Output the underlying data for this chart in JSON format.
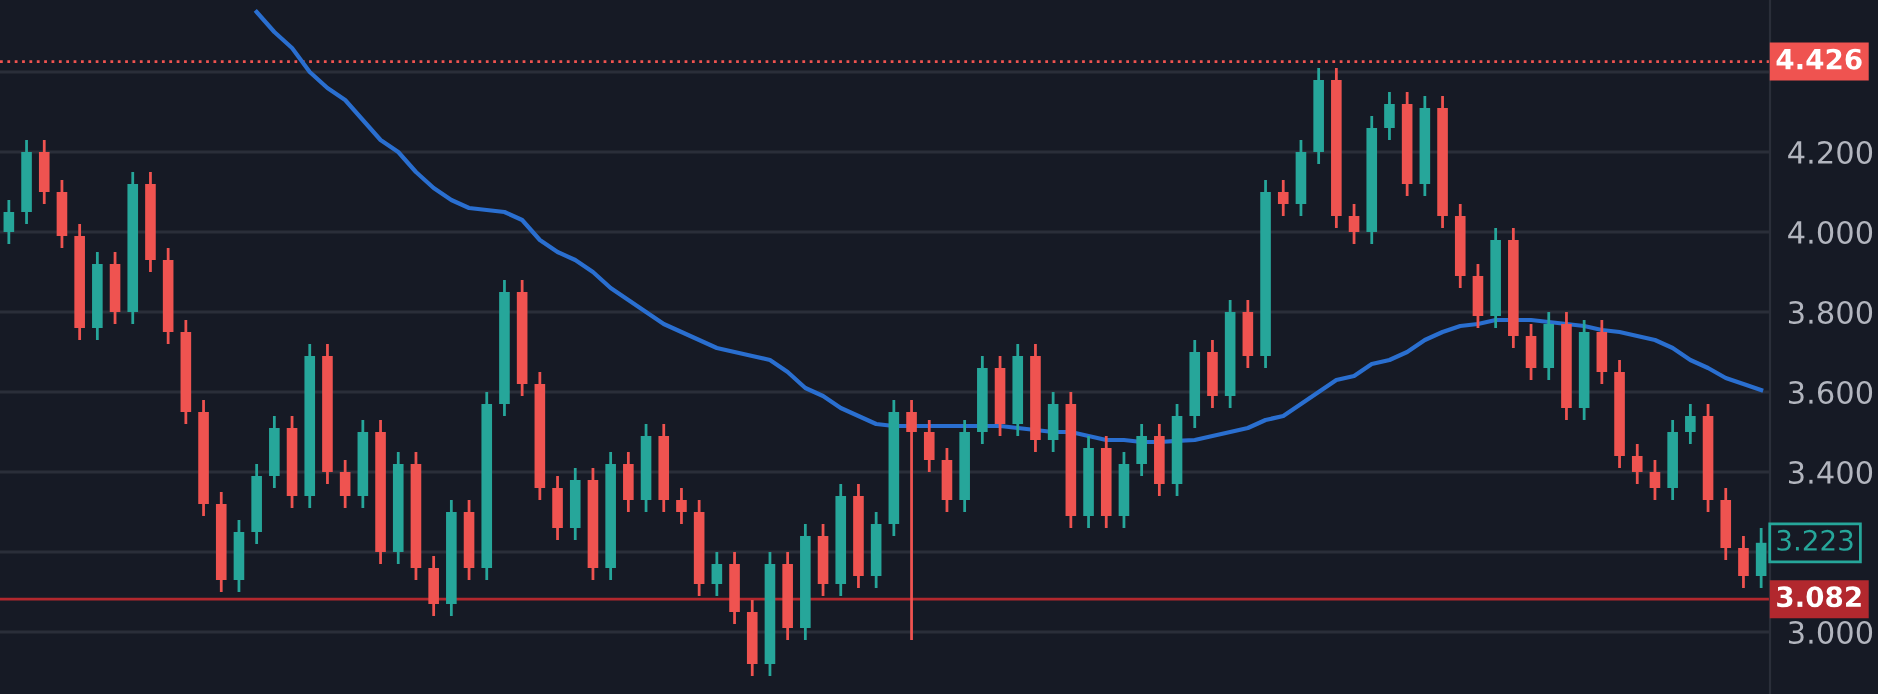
{
  "chart_data": {
    "type": "candlestick",
    "categories": [
      null,
      null,
      null,
      null,
      null,
      null,
      null,
      null,
      null,
      null,
      null,
      null,
      null,
      null,
      null,
      null,
      null,
      null,
      null,
      null,
      null,
      null,
      null,
      null,
      null,
      null,
      null,
      null,
      null,
      null,
      null,
      null,
      null,
      null,
      null,
      null,
      null,
      null,
      null,
      null,
      null,
      null,
      null,
      null,
      null,
      null,
      null,
      null,
      null,
      null,
      null,
      null,
      null,
      null,
      null,
      null,
      null,
      null,
      null,
      null,
      null,
      null,
      null,
      null,
      null,
      null,
      null,
      null,
      null,
      null,
      null,
      null,
      null,
      null,
      null,
      null,
      null,
      null,
      null,
      null,
      null,
      null,
      null,
      null,
      null,
      null,
      null,
      null,
      null,
      null,
      null,
      null,
      null,
      null,
      null,
      null,
      null,
      null,
      null,
      null
    ],
    "ohlc": [
      [
        4.0,
        4.08,
        3.97,
        4.05
      ],
      [
        4.05,
        4.23,
        4.02,
        4.2
      ],
      [
        4.2,
        4.23,
        4.07,
        4.1
      ],
      [
        4.1,
        4.13,
        3.96,
        3.99
      ],
      [
        3.99,
        4.02,
        3.73,
        3.76
      ],
      [
        3.76,
        3.95,
        3.73,
        3.92
      ],
      [
        3.92,
        3.95,
        3.77,
        3.8
      ],
      [
        3.8,
        4.15,
        3.77,
        4.12
      ],
      [
        4.12,
        4.15,
        3.9,
        3.93
      ],
      [
        3.93,
        3.96,
        3.72,
        3.75
      ],
      [
        3.75,
        3.78,
        3.52,
        3.55
      ],
      [
        3.55,
        3.58,
        3.29,
        3.32
      ],
      [
        3.32,
        3.35,
        3.1,
        3.13
      ],
      [
        3.13,
        3.28,
        3.1,
        3.25
      ],
      [
        3.25,
        3.42,
        3.22,
        3.39
      ],
      [
        3.39,
        3.54,
        3.36,
        3.51
      ],
      [
        3.51,
        3.54,
        3.31,
        3.34
      ],
      [
        3.34,
        3.72,
        3.31,
        3.69
      ],
      [
        3.69,
        3.72,
        3.37,
        3.4
      ],
      [
        3.4,
        3.43,
        3.31,
        3.34
      ],
      [
        3.34,
        3.53,
        3.31,
        3.5
      ],
      [
        3.5,
        3.53,
        3.17,
        3.2
      ],
      [
        3.2,
        3.45,
        3.17,
        3.42
      ],
      [
        3.42,
        3.45,
        3.13,
        3.16
      ],
      [
        3.16,
        3.19,
        3.04,
        3.07
      ],
      [
        3.07,
        3.33,
        3.04,
        3.3
      ],
      [
        3.3,
        3.33,
        3.13,
        3.16
      ],
      [
        3.16,
        3.6,
        3.13,
        3.57
      ],
      [
        3.57,
        3.88,
        3.54,
        3.85
      ],
      [
        3.85,
        3.88,
        3.59,
        3.62
      ],
      [
        3.62,
        3.65,
        3.33,
        3.36
      ],
      [
        3.36,
        3.39,
        3.23,
        3.26
      ],
      [
        3.26,
        3.41,
        3.23,
        3.38
      ],
      [
        3.38,
        3.41,
        3.13,
        3.16
      ],
      [
        3.16,
        3.45,
        3.13,
        3.42
      ],
      [
        3.42,
        3.45,
        3.3,
        3.33
      ],
      [
        3.33,
        3.52,
        3.3,
        3.49
      ],
      [
        3.49,
        3.52,
        3.3,
        3.33
      ],
      [
        3.33,
        3.36,
        3.27,
        3.3
      ],
      [
        3.3,
        3.33,
        3.09,
        3.12
      ],
      [
        3.12,
        3.2,
        3.09,
        3.17
      ],
      [
        3.17,
        3.2,
        3.02,
        3.05
      ],
      [
        3.05,
        3.08,
        2.89,
        2.92
      ],
      [
        2.92,
        3.2,
        2.89,
        3.17
      ],
      [
        3.17,
        3.2,
        2.98,
        3.01
      ],
      [
        3.01,
        3.27,
        2.98,
        3.24
      ],
      [
        3.24,
        3.27,
        3.09,
        3.12
      ],
      [
        3.12,
        3.37,
        3.09,
        3.34
      ],
      [
        3.34,
        3.37,
        3.11,
        3.14
      ],
      [
        3.14,
        3.3,
        3.11,
        3.27
      ],
      [
        3.27,
        3.58,
        3.24,
        3.55
      ],
      [
        3.55,
        3.58,
        2.98,
        3.5
      ],
      [
        3.5,
        3.53,
        3.4,
        3.43
      ],
      [
        3.43,
        3.46,
        3.3,
        3.33
      ],
      [
        3.33,
        3.53,
        3.3,
        3.5
      ],
      [
        3.5,
        3.69,
        3.47,
        3.66
      ],
      [
        3.66,
        3.69,
        3.49,
        3.52
      ],
      [
        3.52,
        3.72,
        3.49,
        3.69
      ],
      [
        3.69,
        3.72,
        3.45,
        3.48
      ],
      [
        3.48,
        3.6,
        3.45,
        3.57
      ],
      [
        3.57,
        3.6,
        3.26,
        3.29
      ],
      [
        3.29,
        3.49,
        3.26,
        3.46
      ],
      [
        3.46,
        3.49,
        3.26,
        3.29
      ],
      [
        3.29,
        3.45,
        3.26,
        3.42
      ],
      [
        3.42,
        3.52,
        3.39,
        3.49
      ],
      [
        3.49,
        3.52,
        3.34,
        3.37
      ],
      [
        3.37,
        3.57,
        3.34,
        3.54
      ],
      [
        3.54,
        3.73,
        3.51,
        3.7
      ],
      [
        3.7,
        3.73,
        3.56,
        3.59
      ],
      [
        3.59,
        3.83,
        3.56,
        3.8
      ],
      [
        3.8,
        3.83,
        3.66,
        3.69
      ],
      [
        3.69,
        4.13,
        3.66,
        4.1
      ],
      [
        4.1,
        4.13,
        4.04,
        4.07
      ],
      [
        4.07,
        4.23,
        4.04,
        4.2
      ],
      [
        4.2,
        4.41,
        4.17,
        4.38
      ],
      [
        4.38,
        4.41,
        4.01,
        4.04
      ],
      [
        4.04,
        4.07,
        3.97,
        4.0
      ],
      [
        4.0,
        4.29,
        3.97,
        4.26
      ],
      [
        4.26,
        4.35,
        4.23,
        4.32
      ],
      [
        4.32,
        4.35,
        4.09,
        4.12
      ],
      [
        4.12,
        4.34,
        4.09,
        4.31
      ],
      [
        4.31,
        4.34,
        4.01,
        4.04
      ],
      [
        4.04,
        4.07,
        3.86,
        3.89
      ],
      [
        3.89,
        3.92,
        3.76,
        3.79
      ],
      [
        3.79,
        4.01,
        3.76,
        3.98
      ],
      [
        3.98,
        4.01,
        3.71,
        3.74
      ],
      [
        3.74,
        3.77,
        3.63,
        3.66
      ],
      [
        3.66,
        3.8,
        3.63,
        3.77
      ],
      [
        3.77,
        3.8,
        3.53,
        3.56
      ],
      [
        3.56,
        3.78,
        3.53,
        3.75
      ],
      [
        3.75,
        3.78,
        3.62,
        3.65
      ],
      [
        3.65,
        3.68,
        3.41,
        3.44
      ],
      [
        3.44,
        3.47,
        3.37,
        3.4
      ],
      [
        3.4,
        3.43,
        3.33,
        3.36
      ],
      [
        3.36,
        3.53,
        3.33,
        3.5
      ],
      [
        3.5,
        3.57,
        3.47,
        3.54
      ],
      [
        3.54,
        3.57,
        3.3,
        3.33
      ],
      [
        3.33,
        3.36,
        3.18,
        3.21
      ],
      [
        3.21,
        3.24,
        3.11,
        3.14
      ],
      [
        3.14,
        3.26,
        3.11,
        3.223
      ]
    ],
    "colors": [
      "#26a69a",
      "#26a69a",
      "#ef5350",
      "#ef5350",
      "#ef5350",
      "#26a69a",
      "#ef5350",
      "#26a69a",
      "#ef5350",
      "#ef5350",
      "#ef5350",
      "#ef5350",
      "#ef5350",
      "#26a69a",
      "#26a69a",
      "#26a69a",
      "#ef5350",
      "#26a69a",
      "#ef5350",
      "#ef5350",
      "#26a69a",
      "#ef5350",
      "#26a69a",
      "#ef5350",
      "#ef5350",
      "#26a69a",
      "#ef5350",
      "#26a69a",
      "#26a69a",
      "#ef5350",
      "#ef5350",
      "#ef5350",
      "#26a69a",
      "#ef5350",
      "#26a69a",
      "#ef5350",
      "#26a69a",
      "#ef5350",
      "#ef5350",
      "#ef5350",
      "#26a69a",
      "#ef5350",
      "#ef5350",
      "#26a69a",
      "#ef5350",
      "#26a69a",
      "#ef5350",
      "#26a69a",
      "#ef5350",
      "#26a69a",
      "#26a69a",
      "#ef5350",
      "#ef5350",
      "#ef5350",
      "#26a69a",
      "#26a69a",
      "#ef5350",
      "#26a69a",
      "#ef5350",
      "#26a69a",
      "#ef5350",
      "#26a69a",
      "#ef5350",
      "#26a69a",
      "#26a69a",
      "#ef5350",
      "#26a69a",
      "#26a69a",
      "#ef5350",
      "#26a69a",
      "#ef5350",
      "#26a69a",
      "#ef5350",
      "#26a69a",
      "#26a69a",
      "#ef5350",
      "#ef5350",
      "#26a69a",
      "#26a69a",
      "#ef5350",
      "#26a69a",
      "#ef5350",
      "#ef5350",
      "#ef5350",
      "#26a69a",
      "#ef5350",
      "#ef5350",
      "#26a69a",
      "#ef5350",
      "#26a69a",
      "#ef5350",
      "#ef5350",
      "#ef5350",
      "#ef5350",
      "#26a69a",
      "#26a69a",
      "#ef5350",
      "#ef5350",
      "#ef5350",
      "#26a69a"
    ],
    "series": [
      {
        "type": "line",
        "color": "#2a6fd0",
        "values": [
          null,
          null,
          null,
          null,
          null,
          null,
          null,
          null,
          null,
          null,
          null,
          null,
          null,
          null,
          4.55,
          4.5,
          4.46,
          4.4,
          4.36,
          4.33,
          4.28,
          4.23,
          4.2,
          4.15,
          4.11,
          4.08,
          4.06,
          4.055,
          4.05,
          4.03,
          3.98,
          3.95,
          3.93,
          3.9,
          3.86,
          3.83,
          3.8,
          3.77,
          3.75,
          3.73,
          3.71,
          3.7,
          3.69,
          3.68,
          3.65,
          3.61,
          3.59,
          3.56,
          3.54,
          3.52,
          3.515,
          3.515,
          3.515,
          3.515,
          3.515,
          3.515,
          3.515,
          3.51,
          3.505,
          3.5,
          3.5,
          3.49,
          3.48,
          3.48,
          3.475,
          3.475,
          3.478,
          3.48,
          3.49,
          3.5,
          3.51,
          3.53,
          3.54,
          3.57,
          3.6,
          3.63,
          3.64,
          3.67,
          3.68,
          3.7,
          3.73,
          3.75,
          3.765,
          3.77,
          3.78,
          3.78,
          3.78,
          3.775,
          3.77,
          3.765,
          3.755,
          3.75,
          3.74,
          3.73,
          3.71,
          3.68,
          3.66,
          3.635,
          3.62,
          3.605
        ]
      }
    ],
    "ylim": [
      2.845,
      4.58
    ],
    "yticks": [
      {
        "value": 3.0,
        "label": "3.000"
      },
      {
        "value": 3.2,
        "label": null
      },
      {
        "value": 3.4,
        "label": "3.400"
      },
      {
        "value": 3.6,
        "label": "3.600"
      },
      {
        "value": 3.8,
        "label": "3.800"
      },
      {
        "value": 4.0,
        "label": "4.000"
      },
      {
        "value": 4.2,
        "label": "4.200"
      },
      {
        "value": 4.4,
        "label": null
      }
    ],
    "ref_lines": [
      {
        "axis": "y",
        "value": 4.426,
        "label": "4.426",
        "color": "#ef5350",
        "line_style": "dotted"
      },
      {
        "axis": "y",
        "value": 3.082,
        "label": "3.082",
        "color": "#b2282e",
        "line_style": "solid"
      }
    ],
    "annotations": [
      "3.223"
    ],
    "grid": "y"
  }
}
